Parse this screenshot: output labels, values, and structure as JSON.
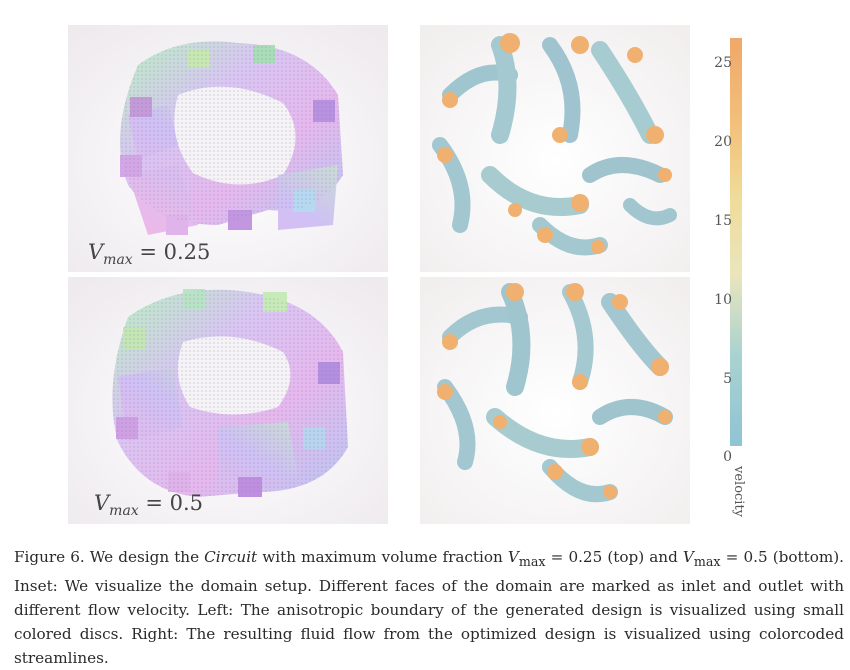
{
  "figure": {
    "panels": [
      {
        "id": "top-left",
        "label_var": "V",
        "label_sub": "max",
        "label_rest": " = 0.25"
      },
      {
        "id": "top-right"
      },
      {
        "id": "bottom-left",
        "label_var": "V",
        "label_sub": "max",
        "label_rest": " = 0.5"
      },
      {
        "id": "bottom-right"
      }
    ],
    "colorbar": {
      "title": "velocity",
      "ticks": [
        "25",
        "20",
        "15",
        "10",
        "5",
        "0"
      ],
      "colors": {
        "low": "#8fc4d3",
        "mid": "#f0dc9a",
        "high": "#f0a86a"
      }
    }
  },
  "caption": {
    "p1": "Figure 6.  We design the ",
    "p2": "Circuit",
    "p3": " with maximum volume fraction ",
    "p4": "V",
    "p5": "max",
    "p6": " = 0.25 (top) and ",
    "p7": "V",
    "p8": "max",
    "p9": " = 0.5 (bottom). Inset: We visualize the domain setup. Different faces of the domain are marked as inlet and outlet with different flow velocity. Left: The anisotropic boundary of the generated design is visualized using small colored discs. Right: The resulting fluid flow from the optimized design is visualized using colorcoded streamlines."
  }
}
